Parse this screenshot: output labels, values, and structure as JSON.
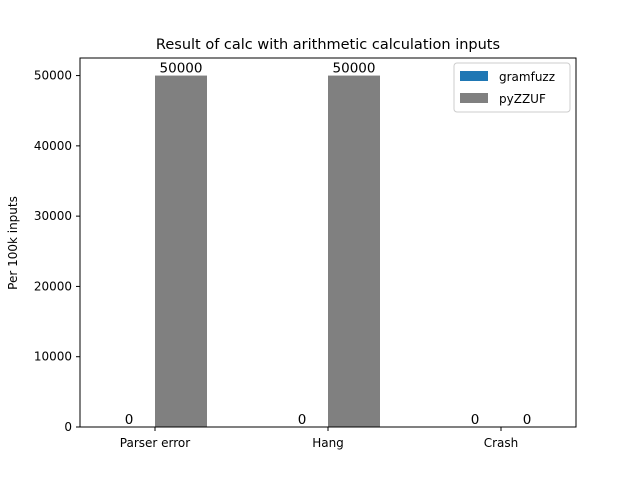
{
  "chart_data": {
    "type": "bar",
    "title": "Result of calc with arithmetic calculation inputs",
    "xlabel": "",
    "ylabel": "Per 100k inputs",
    "categories": [
      "Parser error",
      "Hang",
      "Crash"
    ],
    "series": [
      {
        "name": "gramfuzz",
        "values": [
          0,
          0,
          0
        ],
        "color": "#1f77b4"
      },
      {
        "name": "pyZZUF",
        "values": [
          50000,
          50000,
          0
        ],
        "color": "#808080"
      }
    ],
    "ylim": [
      0,
      52500
    ],
    "yticks": [
      0,
      10000,
      20000,
      30000,
      40000,
      50000
    ],
    "data_labels": true,
    "legend_position": "top-right",
    "grid": false
  }
}
